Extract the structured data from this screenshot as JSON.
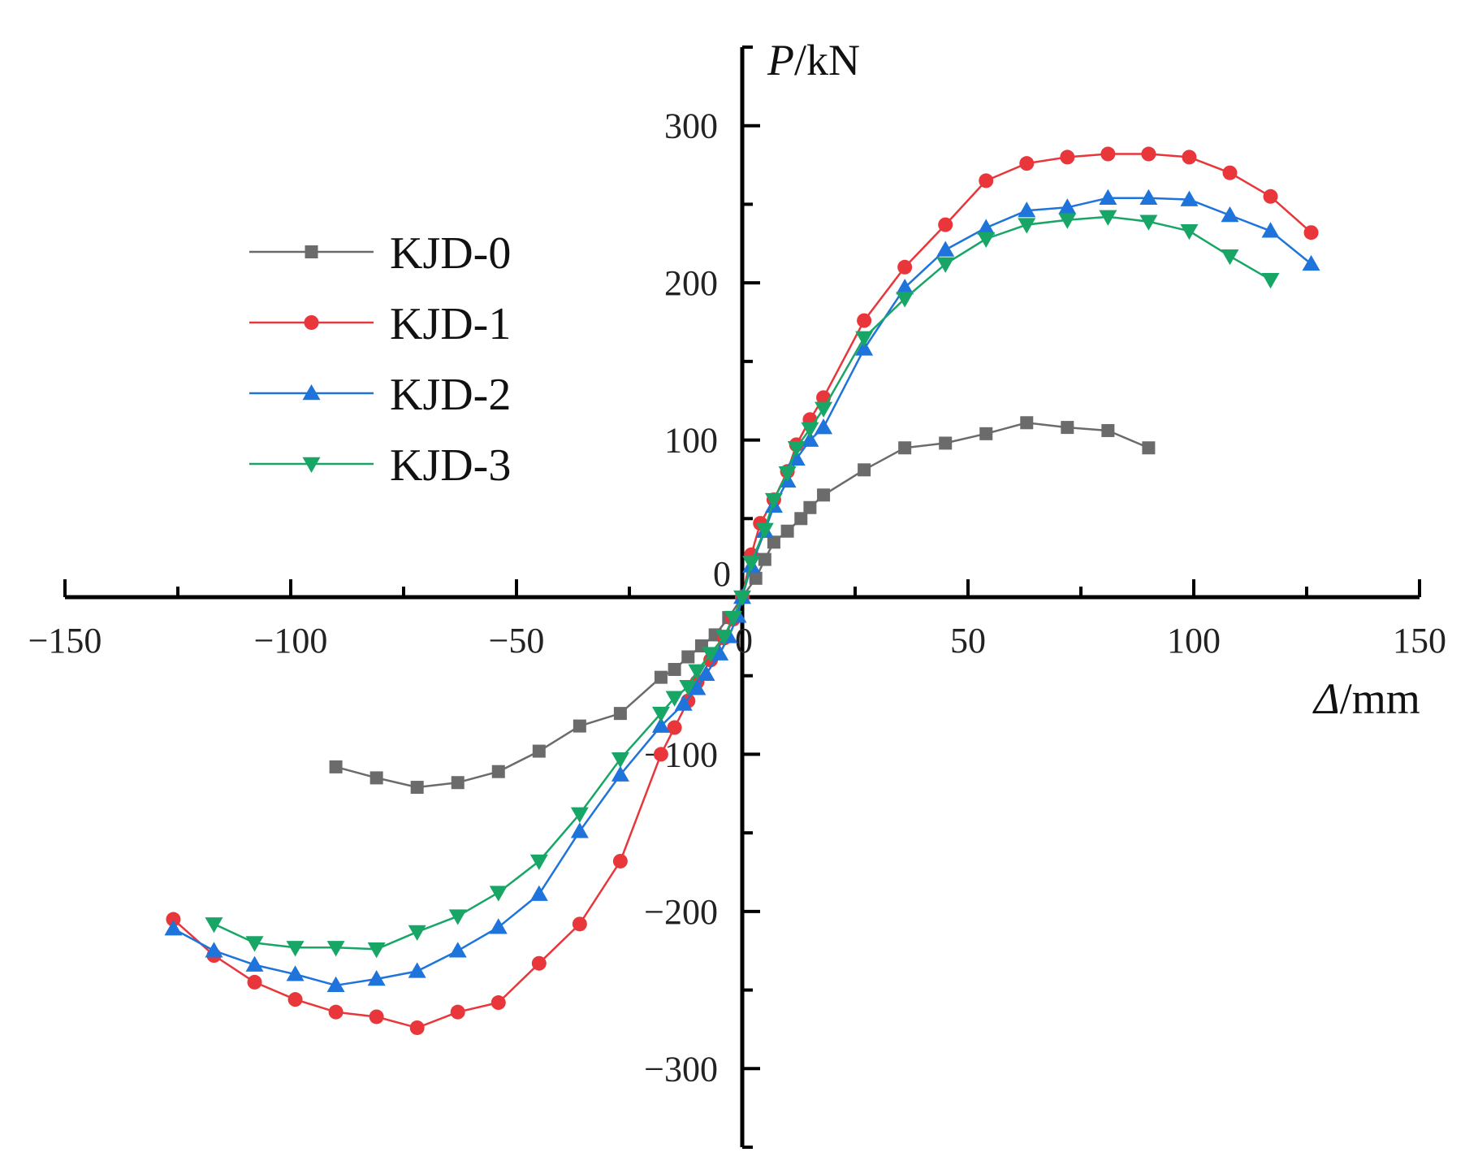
{
  "chart_data": {
    "type": "line",
    "title": "",
    "xlabel": {
      "symbol": "Δ",
      "unit": "/mm"
    },
    "ylabel": {
      "symbol": "P",
      "unit": "/kN"
    },
    "xlim": [
      -150,
      150
    ],
    "ylim": [
      -350,
      350
    ],
    "xticks": [
      -150,
      -100,
      -50,
      0,
      50,
      100,
      150
    ],
    "yticks": [
      -300,
      -200,
      -100,
      0,
      100,
      200,
      300
    ],
    "x_tick_labels": [
      "−150",
      "−100",
      "−50",
      "0",
      "50",
      "100",
      "150"
    ],
    "y_tick_labels": [
      "−300",
      "−200",
      "−100",
      "0",
      "100",
      "200",
      "300"
    ],
    "grid": false,
    "legend_position": "left",
    "series": [
      {
        "name": "KJD-0",
        "marker": "square",
        "color": "#6b6b6b",
        "points": [
          [
            -90,
            -108
          ],
          [
            -81,
            -115
          ],
          [
            -72,
            -121
          ],
          [
            -63,
            -118
          ],
          [
            -54,
            -111
          ],
          [
            -45,
            -98
          ],
          [
            -36,
            -82
          ],
          [
            -27,
            -74
          ],
          [
            -18,
            -51
          ],
          [
            -15,
            -46
          ],
          [
            -12,
            -38
          ],
          [
            -9,
            -31
          ],
          [
            -6,
            -24
          ],
          [
            -3,
            -13
          ],
          [
            0,
            0
          ],
          [
            3,
            12
          ],
          [
            5,
            24
          ],
          [
            7,
            35
          ],
          [
            10,
            42
          ],
          [
            13,
            50
          ],
          [
            15,
            57
          ],
          [
            18,
            65
          ],
          [
            27,
            81
          ],
          [
            36,
            95
          ],
          [
            45,
            98
          ],
          [
            54,
            104
          ],
          [
            63,
            111
          ],
          [
            72,
            108
          ],
          [
            81,
            106
          ],
          [
            90,
            95
          ]
        ]
      },
      {
        "name": "KJD-1",
        "marker": "circle",
        "color": "#e8363a",
        "points": [
          [
            -126,
            -205
          ],
          [
            -117,
            -228
          ],
          [
            -108,
            -245
          ],
          [
            -99,
            -256
          ],
          [
            -90,
            -264
          ],
          [
            -81,
            -267
          ],
          [
            -72,
            -274
          ],
          [
            -63,
            -264
          ],
          [
            -54,
            -258
          ],
          [
            -45,
            -233
          ],
          [
            -36,
            -208
          ],
          [
            -27,
            -168
          ],
          [
            -18,
            -100
          ],
          [
            -15,
            -83
          ],
          [
            -12,
            -66
          ],
          [
            -10,
            -54
          ],
          [
            -7,
            -40
          ],
          [
            -4,
            -26
          ],
          [
            -2,
            -14
          ],
          [
            0,
            0
          ],
          [
            2,
            27
          ],
          [
            4,
            47
          ],
          [
            7,
            62
          ],
          [
            10,
            80
          ],
          [
            12,
            97
          ],
          [
            15,
            113
          ],
          [
            18,
            127
          ],
          [
            27,
            176
          ],
          [
            36,
            210
          ],
          [
            45,
            237
          ],
          [
            54,
            265
          ],
          [
            63,
            276
          ],
          [
            72,
            280
          ],
          [
            81,
            282
          ],
          [
            90,
            282
          ],
          [
            99,
            280
          ],
          [
            108,
            270
          ],
          [
            117,
            255
          ],
          [
            126,
            232
          ]
        ]
      },
      {
        "name": "KJD-2",
        "marker": "triangle-up",
        "color": "#1e74db",
        "points": [
          [
            -126,
            -211
          ],
          [
            -117,
            -225
          ],
          [
            -108,
            -234
          ],
          [
            -99,
            -240
          ],
          [
            -90,
            -247
          ],
          [
            -81,
            -243
          ],
          [
            -72,
            -238
          ],
          [
            -63,
            -225
          ],
          [
            -54,
            -210
          ],
          [
            -45,
            -189
          ],
          [
            -36,
            -149
          ],
          [
            -27,
            -113
          ],
          [
            -18,
            -82
          ],
          [
            -13,
            -68
          ],
          [
            -10,
            -58
          ],
          [
            -8,
            -49
          ],
          [
            -5,
            -36
          ],
          [
            -3,
            -25
          ],
          [
            -1,
            -12
          ],
          [
            0,
            0
          ],
          [
            2,
            20
          ],
          [
            5,
            42
          ],
          [
            7,
            58
          ],
          [
            10,
            74
          ],
          [
            12,
            88
          ],
          [
            15,
            100
          ],
          [
            18,
            108
          ],
          [
            27,
            158
          ],
          [
            36,
            197
          ],
          [
            45,
            221
          ],
          [
            54,
            235
          ],
          [
            63,
            246
          ],
          [
            72,
            248
          ],
          [
            81,
            254
          ],
          [
            90,
            254
          ],
          [
            99,
            253
          ],
          [
            108,
            243
          ],
          [
            117,
            233
          ],
          [
            126,
            212
          ]
        ]
      },
      {
        "name": "KJD-3",
        "marker": "triangle-down",
        "color": "#18a667",
        "points": [
          [
            -117,
            -208
          ],
          [
            -108,
            -220
          ],
          [
            -99,
            -223
          ],
          [
            -90,
            -223
          ],
          [
            -81,
            -224
          ],
          [
            -72,
            -213
          ],
          [
            -63,
            -203
          ],
          [
            -54,
            -188
          ],
          [
            -45,
            -168
          ],
          [
            -36,
            -138
          ],
          [
            -27,
            -103
          ],
          [
            -18,
            -74
          ],
          [
            -15,
            -64
          ],
          [
            -12,
            -57
          ],
          [
            -10,
            -47
          ],
          [
            -7,
            -36
          ],
          [
            -4,
            -25
          ],
          [
            -2,
            -13
          ],
          [
            0,
            0
          ],
          [
            2,
            22
          ],
          [
            5,
            43
          ],
          [
            7,
            62
          ],
          [
            10,
            79
          ],
          [
            12,
            95
          ],
          [
            15,
            107
          ],
          [
            18,
            120
          ],
          [
            27,
            165
          ],
          [
            36,
            190
          ],
          [
            45,
            212
          ],
          [
            54,
            228
          ],
          [
            63,
            237
          ],
          [
            72,
            240
          ],
          [
            81,
            242
          ],
          [
            90,
            239
          ],
          [
            99,
            233
          ],
          [
            108,
            217
          ],
          [
            117,
            202
          ]
        ]
      }
    ]
  }
}
